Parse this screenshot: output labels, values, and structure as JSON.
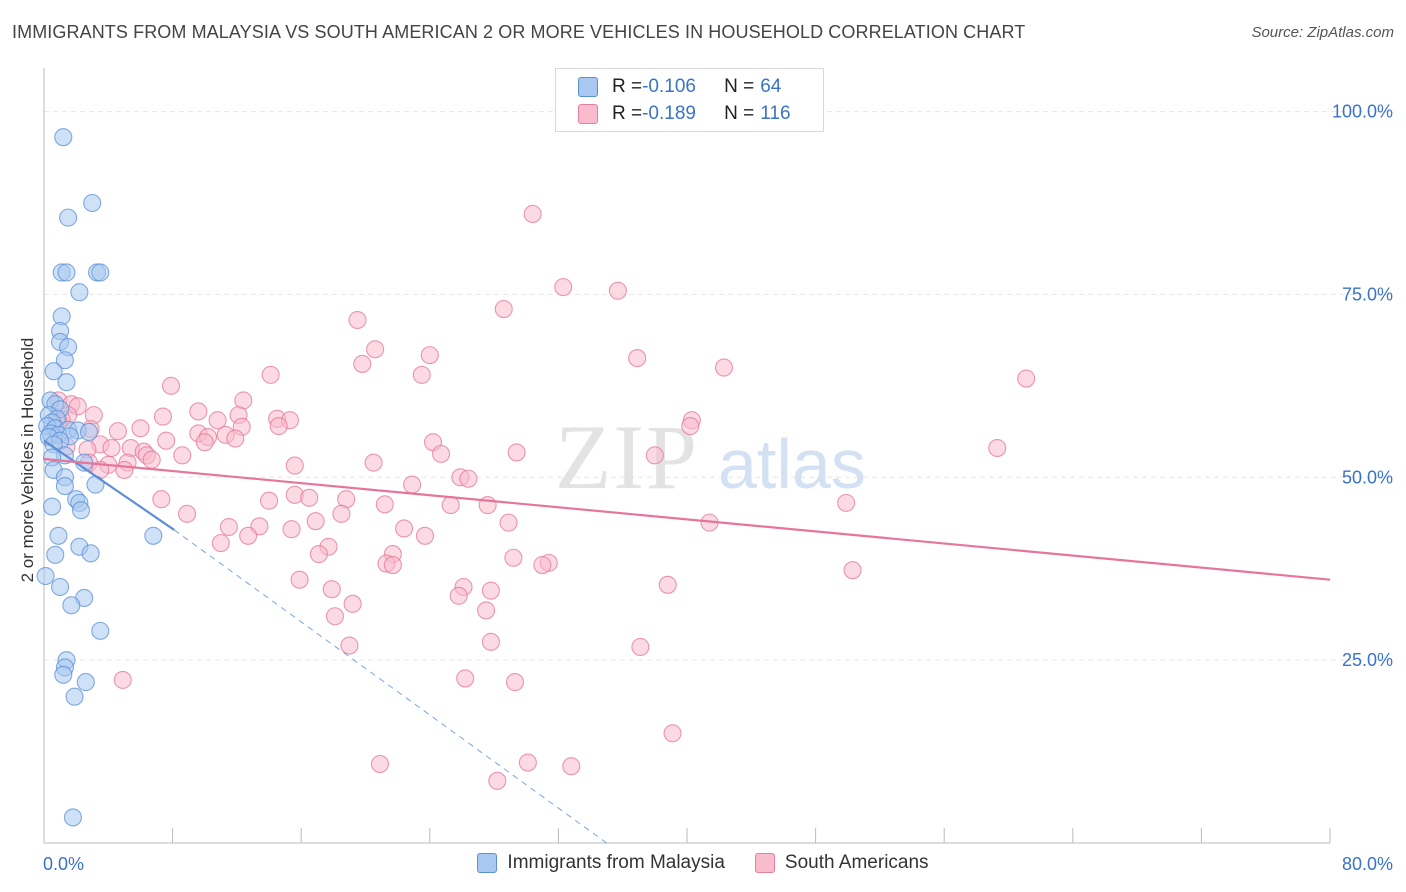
{
  "title": "IMMIGRANTS FROM MALAYSIA VS SOUTH AMERICAN 2 OR MORE VEHICLES IN HOUSEHOLD CORRELATION CHART",
  "source": "Source: ZipAtlas.com",
  "watermark": {
    "zip": "ZIP",
    "atlas": "atlas"
  },
  "stats": [
    {
      "r_label": "R = ",
      "r_value": "-0.106",
      "n_label": "N = ",
      "n_value": "64",
      "color": "#a8c8f0",
      "border": "#5b8fd6"
    },
    {
      "r_label": "R = ",
      "r_value": "-0.189",
      "n_label": "N = ",
      "n_value": "116",
      "color": "#f8bccd",
      "border": "#e77fa0"
    }
  ],
  "legend": [
    {
      "label": "Immigrants from Malaysia",
      "color": "#a8c8f0",
      "border": "#5b8fd6"
    },
    {
      "label": "South Americans",
      "color": "#f8bccd",
      "border": "#e77fa0"
    }
  ],
  "chart_data": {
    "type": "scatter",
    "title": "IMMIGRANTS FROM MALAYSIA VS SOUTH AMERICAN 2 OR MORE VEHICLES IN HOUSEHOLD CORRELATION CHART",
    "xlabel": "",
    "ylabel": "2 or more Vehicles in Household",
    "xlim": [
      0,
      80
    ],
    "ylim": [
      0,
      105
    ],
    "x_tick_labels": [
      "0.0%",
      "80.0%"
    ],
    "y_ticks": [
      25,
      50,
      75,
      100
    ],
    "y_tick_labels": [
      "25.0%",
      "50.0%",
      "75.0%",
      "100.0%"
    ],
    "grid": true,
    "legend_position": "bottom-center",
    "series": [
      {
        "name": "Immigrants from Malaysia",
        "color": "#5b8fd6",
        "fill": "#a8c8f0",
        "trend": {
          "x": [
            0,
            8.1
          ],
          "y": [
            55.0,
            42.8
          ]
        },
        "trend_extension": {
          "x": [
            8.1,
            35.0
          ],
          "y": [
            42.8,
            0.0
          ]
        },
        "points": [
          [
            1.2,
            96.5
          ],
          [
            3.0,
            87.5
          ],
          [
            1.5,
            85.5
          ],
          [
            1.1,
            78.0
          ],
          [
            1.4,
            78.0
          ],
          [
            3.3,
            78.0
          ],
          [
            3.5,
            78.0
          ],
          [
            2.2,
            75.3
          ],
          [
            1.1,
            72.0
          ],
          [
            1.0,
            70.0
          ],
          [
            1.0,
            68.5
          ],
          [
            1.5,
            67.8
          ],
          [
            1.3,
            66.0
          ],
          [
            1.4,
            63.0
          ],
          [
            0.6,
            64.5
          ],
          [
            0.4,
            60.5
          ],
          [
            0.7,
            60.0
          ],
          [
            1.0,
            59.3
          ],
          [
            0.3,
            58.5
          ],
          [
            0.8,
            58.0
          ],
          [
            0.5,
            57.5
          ],
          [
            0.2,
            57.0
          ],
          [
            0.7,
            56.7
          ],
          [
            1.5,
            56.5
          ],
          [
            2.1,
            56.4
          ],
          [
            2.8,
            56.2
          ],
          [
            0.4,
            56.0
          ],
          [
            0.9,
            55.8
          ],
          [
            1.6,
            55.6
          ],
          [
            0.3,
            55.5
          ],
          [
            1.0,
            55.0
          ],
          [
            0.6,
            54.5
          ],
          [
            1.3,
            53.0
          ],
          [
            0.5,
            52.7
          ],
          [
            2.5,
            52.0
          ],
          [
            0.6,
            51.0
          ],
          [
            1.3,
            50.0
          ],
          [
            3.2,
            49.0
          ],
          [
            1.3,
            48.8
          ],
          [
            2.0,
            47.0
          ],
          [
            2.2,
            46.5
          ],
          [
            0.5,
            46.0
          ],
          [
            2.3,
            45.5
          ],
          [
            0.9,
            42.0
          ],
          [
            6.8,
            42.0
          ],
          [
            2.2,
            40.5
          ],
          [
            2.9,
            39.6
          ],
          [
            0.7,
            39.4
          ],
          [
            0.1,
            36.5
          ],
          [
            1.0,
            35.0
          ],
          [
            2.5,
            33.5
          ],
          [
            1.7,
            32.5
          ],
          [
            3.5,
            29.0
          ],
          [
            1.4,
            25.0
          ],
          [
            1.3,
            24.0
          ],
          [
            1.2,
            23.0
          ],
          [
            2.6,
            22.0
          ],
          [
            1.9,
            20.0
          ],
          [
            1.8,
            3.5
          ]
        ]
      },
      {
        "name": "South Americans",
        "color": "#e5769a",
        "fill": "#f8bccd",
        "trend": {
          "x": [
            0,
            80
          ],
          "y": [
            52.5,
            36.0
          ]
        },
        "points": [
          [
            30.4,
            86.0
          ],
          [
            32.3,
            76.0
          ],
          [
            35.7,
            75.5
          ],
          [
            28.6,
            73.0
          ],
          [
            19.5,
            71.5
          ],
          [
            24.0,
            66.7
          ],
          [
            20.6,
            67.5
          ],
          [
            36.9,
            66.3
          ],
          [
            19.8,
            65.5
          ],
          [
            42.3,
            65.0
          ],
          [
            61.1,
            63.5
          ],
          [
            14.1,
            64.0
          ],
          [
            23.5,
            64.0
          ],
          [
            7.9,
            62.5
          ],
          [
            12.4,
            60.5
          ],
          [
            0.9,
            60.5
          ],
          [
            1.7,
            60.0
          ],
          [
            2.1,
            59.7
          ],
          [
            9.6,
            59.0
          ],
          [
            12.1,
            58.5
          ],
          [
            1.5,
            58.5
          ],
          [
            3.1,
            58.5
          ],
          [
            7.4,
            58.3
          ],
          [
            1.1,
            57.9
          ],
          [
            0.9,
            57.6
          ],
          [
            14.5,
            58.0
          ],
          [
            10.8,
            57.8
          ],
          [
            15.3,
            57.8
          ],
          [
            40.3,
            57.8
          ],
          [
            40.2,
            57.0
          ],
          [
            12.3,
            56.9
          ],
          [
            14.6,
            57.0
          ],
          [
            6.0,
            56.7
          ],
          [
            2.9,
            56.6
          ],
          [
            4.6,
            56.3
          ],
          [
            9.6,
            56.0
          ],
          [
            11.3,
            55.8
          ],
          [
            10.2,
            55.5
          ],
          [
            7.6,
            55.0
          ],
          [
            11.9,
            55.3
          ],
          [
            10.0,
            54.8
          ],
          [
            24.2,
            54.8
          ],
          [
            3.5,
            54.5
          ],
          [
            1.4,
            54.2
          ],
          [
            5.4,
            54.0
          ],
          [
            4.2,
            54.0
          ],
          [
            2.7,
            53.8
          ],
          [
            6.2,
            53.5
          ],
          [
            6.4,
            53.0
          ],
          [
            24.7,
            53.2
          ],
          [
            29.4,
            53.4
          ],
          [
            38.0,
            53.0
          ],
          [
            8.6,
            53.0
          ],
          [
            59.3,
            54.0
          ],
          [
            6.7,
            52.4
          ],
          [
            2.8,
            52.0
          ],
          [
            5.2,
            52.0
          ],
          [
            20.5,
            52.0
          ],
          [
            4.0,
            51.7
          ],
          [
            15.6,
            51.6
          ],
          [
            3.5,
            51.0
          ],
          [
            5.0,
            51.0
          ],
          [
            25.9,
            50.0
          ],
          [
            26.4,
            49.8
          ],
          [
            22.9,
            49.0
          ],
          [
            7.3,
            47.0
          ],
          [
            15.6,
            47.6
          ],
          [
            16.5,
            47.2
          ],
          [
            18.8,
            47.0
          ],
          [
            14.0,
            46.8
          ],
          [
            21.2,
            46.3
          ],
          [
            25.3,
            46.2
          ],
          [
            27.6,
            46.2
          ],
          [
            49.9,
            46.5
          ],
          [
            18.5,
            45.0
          ],
          [
            8.9,
            45.0
          ],
          [
            16.9,
            44.0
          ],
          [
            28.9,
            43.8
          ],
          [
            41.4,
            43.8
          ],
          [
            11.5,
            43.2
          ],
          [
            13.4,
            43.3
          ],
          [
            22.4,
            43.0
          ],
          [
            15.4,
            42.9
          ],
          [
            12.7,
            42.0
          ],
          [
            23.7,
            42.0
          ],
          [
            11.0,
            41.0
          ],
          [
            17.7,
            40.5
          ],
          [
            17.1,
            39.5
          ],
          [
            21.7,
            39.5
          ],
          [
            29.2,
            39.0
          ],
          [
            31.4,
            38.3
          ],
          [
            21.3,
            38.2
          ],
          [
            21.7,
            38.0
          ],
          [
            31.0,
            38.0
          ],
          [
            50.3,
            37.3
          ],
          [
            15.9,
            36.0
          ],
          [
            26.1,
            35.0
          ],
          [
            38.8,
            35.3
          ],
          [
            17.9,
            34.7
          ],
          [
            27.8,
            34.5
          ],
          [
            25.8,
            33.8
          ],
          [
            19.2,
            32.7
          ],
          [
            27.5,
            31.8
          ],
          [
            18.1,
            31.0
          ],
          [
            27.8,
            27.5
          ],
          [
            19.0,
            27.0
          ],
          [
            37.1,
            26.8
          ],
          [
            4.9,
            22.3
          ],
          [
            26.2,
            22.5
          ],
          [
            29.3,
            22.0
          ],
          [
            39.1,
            15.0
          ],
          [
            20.9,
            10.8
          ],
          [
            30.1,
            11.0
          ],
          [
            32.8,
            10.5
          ],
          [
            28.2,
            8.5
          ]
        ]
      }
    ]
  }
}
